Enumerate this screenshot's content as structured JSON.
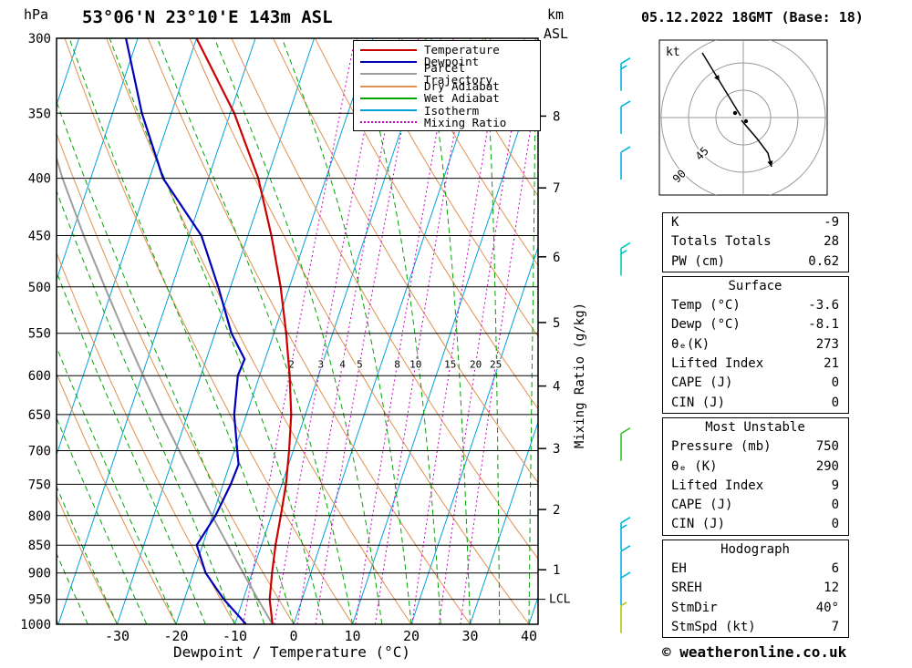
{
  "header": {
    "station": "53°06'N 23°10'E 143m ASL",
    "datetime": "05.12.2022 18GMT (Base: 18)",
    "pressure_unit": "hPa",
    "alt_unit_km": "km",
    "alt_unit_asl": "ASL"
  },
  "axes": {
    "x_label": "Dewpoint / Temperature (°C)",
    "y_right_label": "Mixing Ratio (g/kg)",
    "pressure_ticks": [
      300,
      350,
      400,
      450,
      500,
      550,
      600,
      650,
      700,
      750,
      800,
      850,
      900,
      950,
      1000
    ],
    "temp_ticks": [
      -30,
      -20,
      -10,
      0,
      10,
      20,
      30,
      40
    ],
    "lcl_label": "LCL"
  },
  "legend": {
    "items": [
      {
        "label": "Temperature",
        "color": "#cc0000",
        "style": "solid"
      },
      {
        "label": "Dewpoint",
        "color": "#0000bb",
        "style": "solid"
      },
      {
        "label": "Parcel Trajectory",
        "color": "#9e9e9e",
        "style": "solid"
      },
      {
        "label": "Dry Adiabat",
        "color": "#e09050",
        "style": "solid"
      },
      {
        "label": "Wet Adiabat",
        "color": "#00a400",
        "style": "solid"
      },
      {
        "label": "Isotherm",
        "color": "#00a2d9",
        "style": "solid"
      },
      {
        "label": "Mixing Ratio",
        "color": "#c800c8",
        "style": "dotted"
      }
    ]
  },
  "chart_data": {
    "type": "line",
    "subtype": "skew-t-log-p",
    "pressure_range": [
      300,
      1000
    ],
    "temp_range_at_surface": [
      -40,
      41
    ],
    "colors": {
      "temperature": "#cc0000",
      "dewpoint": "#0000bb",
      "parcel": "#9e9e9e",
      "dry_adiabat": "#e09050",
      "wet_adiabat": "#00a400",
      "isotherm": "#00a2d9",
      "mixing_ratio": "#c800c8"
    },
    "temperature_profile": [
      [
        1000,
        -3.6
      ],
      [
        950,
        -5.5
      ],
      [
        900,
        -6.6
      ],
      [
        850,
        -7.6
      ],
      [
        800,
        -8.4
      ],
      [
        750,
        -9.3
      ],
      [
        700,
        -10.7
      ],
      [
        650,
        -12.4
      ],
      [
        600,
        -14.9
      ],
      [
        550,
        -17.9
      ],
      [
        500,
        -21.5
      ],
      [
        450,
        -26.0
      ],
      [
        400,
        -31.5
      ],
      [
        350,
        -39.3
      ],
      [
        300,
        -50.0
      ]
    ],
    "dewpoint_profile": [
      [
        1000,
        -8.1
      ],
      [
        950,
        -13.3
      ],
      [
        900,
        -17.9
      ],
      [
        850,
        -21.0
      ],
      [
        800,
        -19.5
      ],
      [
        750,
        -18.7
      ],
      [
        720,
        -18.5
      ],
      [
        700,
        -19.5
      ],
      [
        650,
        -22.1
      ],
      [
        600,
        -23.7
      ],
      [
        580,
        -23.5
      ],
      [
        550,
        -27.2
      ],
      [
        500,
        -32.1
      ],
      [
        450,
        -37.9
      ],
      [
        400,
        -47.7
      ],
      [
        350,
        -55.0
      ],
      [
        300,
        -62.0
      ]
    ],
    "parcel_profile": [
      [
        1000,
        -3.6
      ],
      [
        950,
        -7.5
      ],
      [
        900,
        -11.5
      ],
      [
        850,
        -15.7
      ],
      [
        800,
        -20.1
      ],
      [
        750,
        -24.6
      ],
      [
        700,
        -29.4
      ],
      [
        650,
        -34.5
      ],
      [
        600,
        -39.8
      ],
      [
        550,
        -45.4
      ],
      [
        500,
        -51.4
      ],
      [
        450,
        -57.9
      ],
      [
        400,
        -64.8
      ],
      [
        380,
        -67.5
      ]
    ],
    "mixing_ratio_lines": [
      2,
      3,
      4,
      5,
      8,
      10,
      15,
      20,
      25
    ],
    "km_levels": [
      {
        "km": 8,
        "p": 352
      },
      {
        "km": 7,
        "p": 408
      },
      {
        "km": 6,
        "p": 470
      },
      {
        "km": 5,
        "p": 538
      },
      {
        "km": 4,
        "p": 613
      },
      {
        "km": 3,
        "p": 697
      },
      {
        "km": 2,
        "p": 790
      },
      {
        "km": 1,
        "p": 894
      }
    ],
    "lcl_pressure": 950
  },
  "wind_barbs": [
    {
      "p": 325,
      "color": "#00b4dc",
      "speed": 15
    },
    {
      "p": 355,
      "color": "#00b4dc",
      "speed": 10
    },
    {
      "p": 390,
      "color": "#00b4dc",
      "speed": 10
    },
    {
      "p": 475,
      "color": "#00c8b4",
      "speed": 15
    },
    {
      "p": 695,
      "color": "#2cc82c",
      "speed": 10
    },
    {
      "p": 835,
      "color": "#00b4dc",
      "speed": 15
    },
    {
      "p": 885,
      "color": "#00b4dc",
      "speed": 10
    },
    {
      "p": 935,
      "color": "#00b4dc",
      "speed": 10
    },
    {
      "p": 990,
      "color": "#aac800",
      "speed": 5
    }
  ],
  "hodograph": {
    "unit": "kt",
    "ring_labels": [
      "45",
      "90"
    ],
    "trace_segments": [
      {
        "points": [
          [
            770,
            58
          ],
          [
            812,
            127
          ]
        ],
        "arrow_t": 0.45
      },
      {
        "points": [
          [
            813,
            132
          ],
          [
            830,
            152
          ],
          [
            842,
            168
          ],
          [
            846,
            183
          ]
        ],
        "arrow_t": 1
      }
    ],
    "dots": [
      [
        806,
        124
      ],
      [
        818,
        133
      ]
    ]
  },
  "tables": [
    {
      "header": null,
      "rows": [
        [
          "K",
          "-9"
        ],
        [
          "Totals Totals",
          "28"
        ],
        [
          "PW (cm)",
          "0.62"
        ]
      ]
    },
    {
      "header": "Surface",
      "rows": [
        [
          "Temp (°C)",
          "-3.6"
        ],
        [
          "Dewp (°C)",
          "-8.1"
        ],
        [
          "θₑ(K)",
          "273"
        ],
        [
          "Lifted Index",
          "21"
        ],
        [
          "CAPE (J)",
          "0"
        ],
        [
          "CIN (J)",
          "0"
        ]
      ]
    },
    {
      "header": "Most Unstable",
      "rows": [
        [
          "Pressure (mb)",
          "750"
        ],
        [
          "θₑ (K)",
          "290"
        ],
        [
          "Lifted Index",
          "9"
        ],
        [
          "CAPE (J)",
          "0"
        ],
        [
          "CIN (J)",
          "0"
        ]
      ]
    },
    {
      "header": "Hodograph",
      "rows": [
        [
          "EH",
          "6"
        ],
        [
          "SREH",
          "12"
        ],
        [
          "StmDir",
          "40°"
        ],
        [
          "StmSpd (kt)",
          "7"
        ]
      ]
    }
  ],
  "footer": {
    "copyright": "© weatheronline.co.uk"
  }
}
